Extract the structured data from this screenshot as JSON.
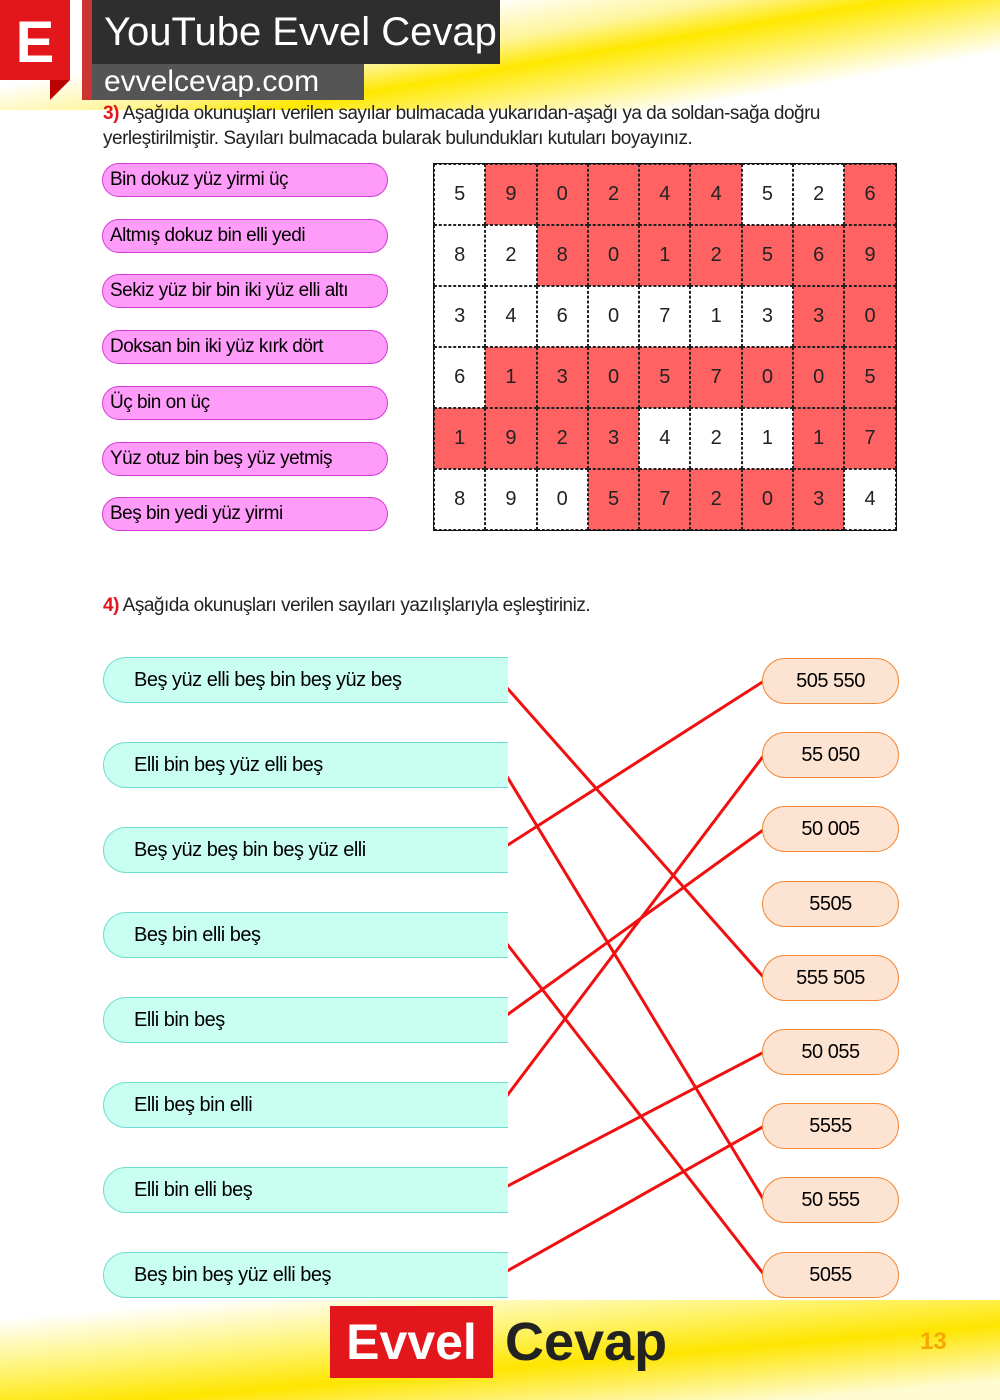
{
  "header": {
    "logo_letter": "E",
    "title": "YouTube Evvel Cevap",
    "site": "evvelcevap.com"
  },
  "q3": {
    "number": "3)",
    "text": "Aşağıda okunuşları verilen sayılar bulmacada yukarıdan-aşağı ya da soldan-sağa doğru yerleştirilmiştir. Sayıları bulmacada bularak bulundukları kutuları boyayınız.",
    "readings": [
      "Bin dokuz yüz yirmi üç",
      "Altmış dokuz bin elli yedi",
      "Sekiz yüz bir bin iki yüz elli altı",
      "Doksan bin iki yüz kırk dört",
      "Üç bin on üç",
      "Yüz otuz bin beş yüz yetmiş",
      "Beş bin yedi yüz yirmi"
    ],
    "grid": [
      [
        "5",
        "9",
        "0",
        "2",
        "4",
        "4",
        "5",
        "2",
        "6"
      ],
      [
        "8",
        "2",
        "8",
        "0",
        "1",
        "2",
        "5",
        "6",
        "9"
      ],
      [
        "3",
        "4",
        "6",
        "0",
        "7",
        "1",
        "3",
        "3",
        "0"
      ],
      [
        "6",
        "1",
        "3",
        "0",
        "5",
        "7",
        "0",
        "0",
        "5"
      ],
      [
        "1",
        "9",
        "2",
        "3",
        "4",
        "2",
        "1",
        "1",
        "7"
      ],
      [
        "8",
        "9",
        "0",
        "5",
        "7",
        "2",
        "0",
        "3",
        "4"
      ]
    ],
    "painted": [
      [
        0,
        1,
        1,
        1,
        1,
        1,
        0,
        0,
        1
      ],
      [
        0,
        0,
        1,
        1,
        1,
        1,
        1,
        1,
        1
      ],
      [
        0,
        0,
        0,
        0,
        0,
        0,
        0,
        1,
        1
      ],
      [
        0,
        1,
        1,
        1,
        1,
        1,
        1,
        1,
        1
      ],
      [
        1,
        1,
        1,
        1,
        0,
        0,
        0,
        1,
        1
      ],
      [
        0,
        0,
        0,
        1,
        1,
        1,
        1,
        1,
        0
      ]
    ],
    "paint_color": "#fe6262"
  },
  "q4": {
    "number": "4)",
    "text": "Aşağıda okunuşları verilen sayıları yazılışlarıyla eşleştiriniz.",
    "left": [
      "Beş yüz elli beş bin beş yüz beş",
      "Elli bin beş yüz elli beş",
      "Beş yüz beş bin beş yüz elli",
      "Beş bin elli beş",
      "Elli bin beş",
      "Elli beş bin elli",
      "Elli  bin elli beş",
      "Beş bin beş yüz elli beş"
    ],
    "right": [
      "505 550",
      "55 050",
      "50 005",
      "5505",
      "555 505",
      "50 055",
      "5555",
      "50 555",
      "5055"
    ],
    "matches": [
      4,
      7,
      0,
      8,
      2,
      1,
      5,
      6
    ],
    "line_color": "#f01010"
  },
  "footer": {
    "brand_a": "Evvel",
    "brand_b": "Cevap",
    "page": "13"
  }
}
